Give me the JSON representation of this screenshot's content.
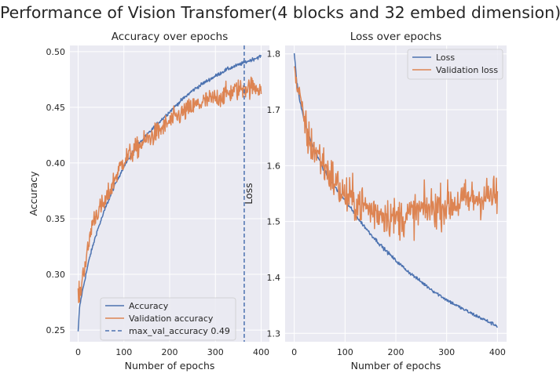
{
  "figure": {
    "suptitle": "Performance of Vision Transfomer(4 blocks and 32 embed dimension)"
  },
  "colors": {
    "background": "#eaeaf2",
    "grid": "#ffffff",
    "series_blue": "#4c72b0",
    "series_orange": "#dd8452",
    "text": "#262626"
  },
  "chart_data": [
    {
      "type": "line",
      "title": "Accuracy over epochs",
      "xlabel": "Number of epochs",
      "ylabel": "Accuracy",
      "xlim": [
        -18,
        418
      ],
      "ylim": [
        0.2395,
        0.5055
      ],
      "xticks": [
        0,
        100,
        200,
        300,
        400
      ],
      "yticks": [
        0.25,
        0.3,
        0.35,
        0.4,
        0.45,
        0.5
      ],
      "ytick_labels": [
        "0.25",
        "0.30",
        "0.35",
        "0.40",
        "0.45",
        "0.50"
      ],
      "grid": true,
      "legend_position": "lower-center",
      "series": [
        {
          "name": "Accuracy",
          "color": "#4c72b0",
          "noise": 0.0015,
          "x": [
            0,
            3,
            8,
            15,
            25,
            40,
            60,
            80,
            100,
            125,
            150,
            175,
            200,
            225,
            250,
            275,
            300,
            325,
            350,
            375,
            400
          ],
          "y": [
            0.248,
            0.27,
            0.282,
            0.296,
            0.315,
            0.337,
            0.36,
            0.38,
            0.397,
            0.413,
            0.425,
            0.436,
            0.446,
            0.456,
            0.465,
            0.472,
            0.478,
            0.484,
            0.488,
            0.492,
            0.496
          ]
        },
        {
          "name": "Validation accuracy",
          "color": "#dd8452",
          "noise": 0.009,
          "x": [
            0,
            5,
            10,
            20,
            30,
            40,
            60,
            80,
            100,
            125,
            150,
            175,
            200,
            225,
            250,
            275,
            300,
            325,
            350,
            375,
            400
          ],
          "y": [
            0.281,
            0.283,
            0.3,
            0.318,
            0.345,
            0.355,
            0.365,
            0.386,
            0.403,
            0.412,
            0.421,
            0.428,
            0.437,
            0.444,
            0.45,
            0.455,
            0.458,
            0.462,
            0.466,
            0.468,
            0.468
          ]
        }
      ],
      "vline": {
        "name": "max_val_accuracy 0.49",
        "x": 363,
        "color": "#4c72b0",
        "style": "dashed"
      }
    },
    {
      "type": "line",
      "title": "Loss over epochs",
      "xlabel": "Number of epochs",
      "ylabel": "Loss",
      "xlim": [
        -18,
        418
      ],
      "ylim": [
        1.285,
        1.815
      ],
      "xticks": [
        0,
        100,
        200,
        300,
        400
      ],
      "yticks": [
        1.3,
        1.4,
        1.5,
        1.6,
        1.7,
        1.8
      ],
      "ytick_labels": [
        "1.3",
        "1.4",
        "1.5",
        "1.6",
        "1.7",
        "1.8"
      ],
      "grid": true,
      "legend_position": "upper-right",
      "series": [
        {
          "name": "Loss",
          "color": "#4c72b0",
          "noise": 0.003,
          "x": [
            0,
            5,
            10,
            20,
            30,
            40,
            60,
            80,
            100,
            125,
            150,
            175,
            200,
            225,
            250,
            275,
            300,
            325,
            350,
            375,
            400
          ],
          "y": [
            1.8,
            1.75,
            1.72,
            1.68,
            1.65,
            1.627,
            1.59,
            1.562,
            1.538,
            1.506,
            1.478,
            1.453,
            1.43,
            1.41,
            1.392,
            1.375,
            1.36,
            1.347,
            1.335,
            1.324,
            1.313
          ]
        },
        {
          "name": "Validation loss",
          "color": "#dd8452",
          "noise": 0.035,
          "x": [
            0,
            5,
            10,
            20,
            30,
            40,
            60,
            80,
            100,
            125,
            150,
            175,
            200,
            225,
            250,
            275,
            300,
            325,
            350,
            375,
            400
          ],
          "y": [
            1.78,
            1.74,
            1.73,
            1.68,
            1.64,
            1.63,
            1.6,
            1.57,
            1.545,
            1.535,
            1.52,
            1.515,
            1.505,
            1.51,
            1.52,
            1.525,
            1.53,
            1.535,
            1.54,
            1.545,
            1.545
          ]
        }
      ]
    }
  ]
}
